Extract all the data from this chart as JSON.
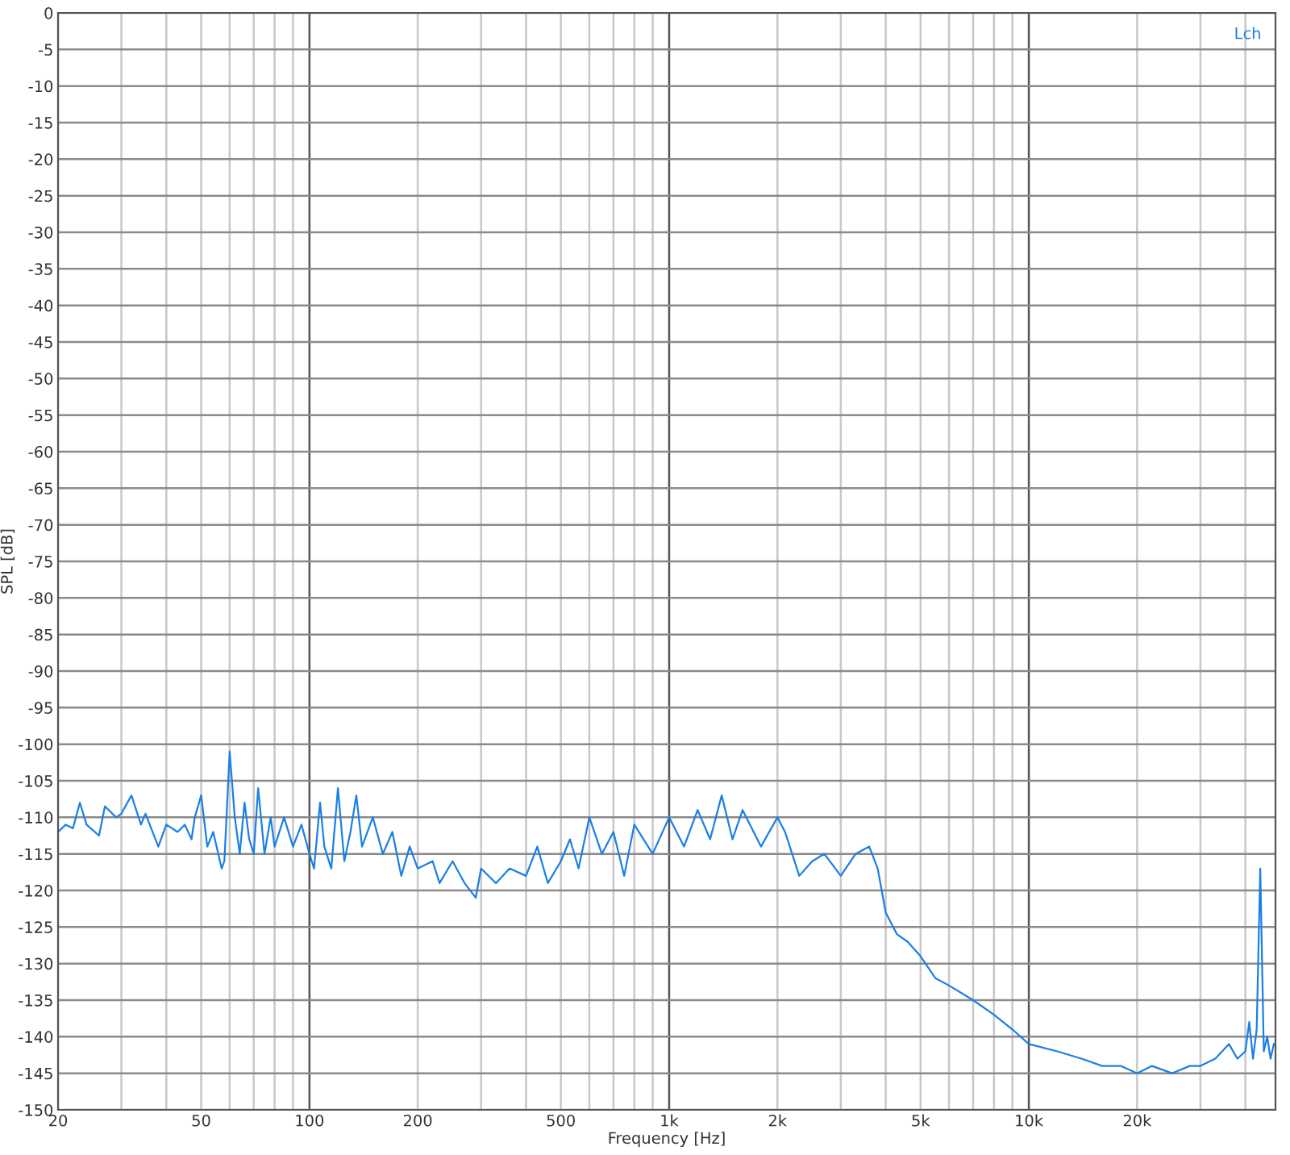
{
  "chart_data": {
    "type": "line",
    "xlabel": "Frequency [Hz]",
    "ylabel": "SPL [dB]",
    "log": "x",
    "grid": true,
    "legend": "top right",
    "marker": "none",
    "line_style": "solid",
    "xlim": [
      20,
      48500
    ],
    "ylim": [
      -150,
      0
    ],
    "xticks": [
      20,
      {
        "value": 30,
        "label": null
      },
      {
        "value": 40,
        "label": null
      },
      50,
      {
        "value": 60,
        "label": null
      },
      {
        "value": 70,
        "label": null
      },
      {
        "value": 80,
        "label": null
      },
      {
        "value": 90,
        "label": null
      },
      100,
      200,
      {
        "value": 300,
        "label": null
      },
      {
        "value": 400,
        "label": null
      },
      500,
      {
        "value": 600,
        "label": null
      },
      {
        "value": 700,
        "label": null
      },
      {
        "value": 800,
        "label": null
      },
      {
        "value": 900,
        "label": null
      },
      {
        "value": 1000,
        "label": "1k"
      },
      {
        "value": 2000,
        "label": "2k"
      },
      {
        "value": 3000,
        "label": null
      },
      {
        "value": 4000,
        "label": null
      },
      {
        "value": 5000,
        "label": "5k"
      },
      {
        "value": 6000,
        "label": null
      },
      {
        "value": 7000,
        "label": null
      },
      {
        "value": 8000,
        "label": null
      },
      {
        "value": 9000,
        "label": null
      },
      {
        "value": 10000,
        "label": "10k"
      },
      {
        "value": 20000,
        "label": "20k"
      },
      {
        "value": 30000,
        "label": null
      },
      {
        "value": 40000,
        "label": null
      }
    ],
    "yticks": [
      0,
      -5,
      -10,
      -15,
      -20,
      -25,
      -30,
      -35,
      -40,
      -45,
      -50,
      -55,
      -60,
      -65,
      -70,
      -75,
      -80,
      -85,
      -90,
      -95,
      -100,
      -105,
      -110,
      -115,
      -120,
      -125,
      -130,
      -135,
      -140,
      -145,
      -150
    ],
    "series": [
      {
        "name": "Lch",
        "color": "#1a7fe6",
        "x": [
          20,
          21,
          22,
          23,
          24,
          26,
          27,
          29,
          30,
          32,
          34,
          35,
          38,
          40,
          43,
          45,
          47,
          48,
          50,
          52,
          54,
          57,
          58,
          60,
          62,
          64,
          66,
          68,
          70,
          72,
          75,
          78,
          80,
          85,
          90,
          95,
          100,
          103,
          107,
          110,
          115,
          120,
          125,
          130,
          135,
          140,
          150,
          160,
          170,
          180,
          190,
          200,
          220,
          230,
          250,
          270,
          290,
          300,
          330,
          360,
          400,
          430,
          460,
          500,
          530,
          560,
          600,
          650,
          700,
          750,
          800,
          900,
          1000,
          1100,
          1200,
          1300,
          1400,
          1500,
          1600,
          1800,
          2000,
          2100,
          2300,
          2500,
          2700,
          3000,
          3300,
          3600,
          3800,
          4000,
          4300,
          4600,
          5000,
          5500,
          6000,
          7000,
          8000,
          9000,
          10000,
          12000,
          14000,
          16000,
          18000,
          20000,
          22000,
          25000,
          28000,
          30000,
          33000,
          36000,
          38000,
          40000,
          41000,
          42000,
          43000,
          44000,
          45000,
          46000,
          47000,
          48000
        ],
        "values": [
          -112,
          -111,
          -111.5,
          -108,
          -111,
          -112.5,
          -108.5,
          -110,
          -109.5,
          -107,
          -111,
          -109.5,
          -114,
          -111,
          -112,
          -111,
          -113,
          -110,
          -107,
          -114,
          -112,
          -117,
          -116,
          -101,
          -110,
          -115,
          -108,
          -113,
          -115,
          -106,
          -115,
          -110,
          -114,
          -110,
          -114,
          -111,
          -115,
          -117,
          -108,
          -114,
          -117,
          -106,
          -116,
          -112,
          -107,
          -114,
          -110,
          -115,
          -112,
          -118,
          -114,
          -117,
          -116,
          -119,
          -116,
          -119,
          -121,
          -117,
          -119,
          -117,
          -118,
          -114,
          -119,
          -116,
          -113,
          -117,
          -110,
          -115,
          -112,
          -118,
          -111,
          -115,
          -110,
          -114,
          -109,
          -113,
          -107,
          -113,
          -109,
          -114,
          -110,
          -112,
          -118,
          -116,
          -115,
          -118,
          -115,
          -114,
          -117,
          -123,
          -126,
          -127,
          -129,
          -132,
          -133,
          -135,
          -137,
          -139,
          -141,
          -142,
          -143,
          -144,
          -144,
          -145,
          -144,
          -145,
          -144,
          -144,
          -143,
          -141,
          -143,
          -142,
          -138,
          -143,
          -139,
          -117,
          -142,
          -140,
          -143,
          -141
        ]
      }
    ]
  }
}
